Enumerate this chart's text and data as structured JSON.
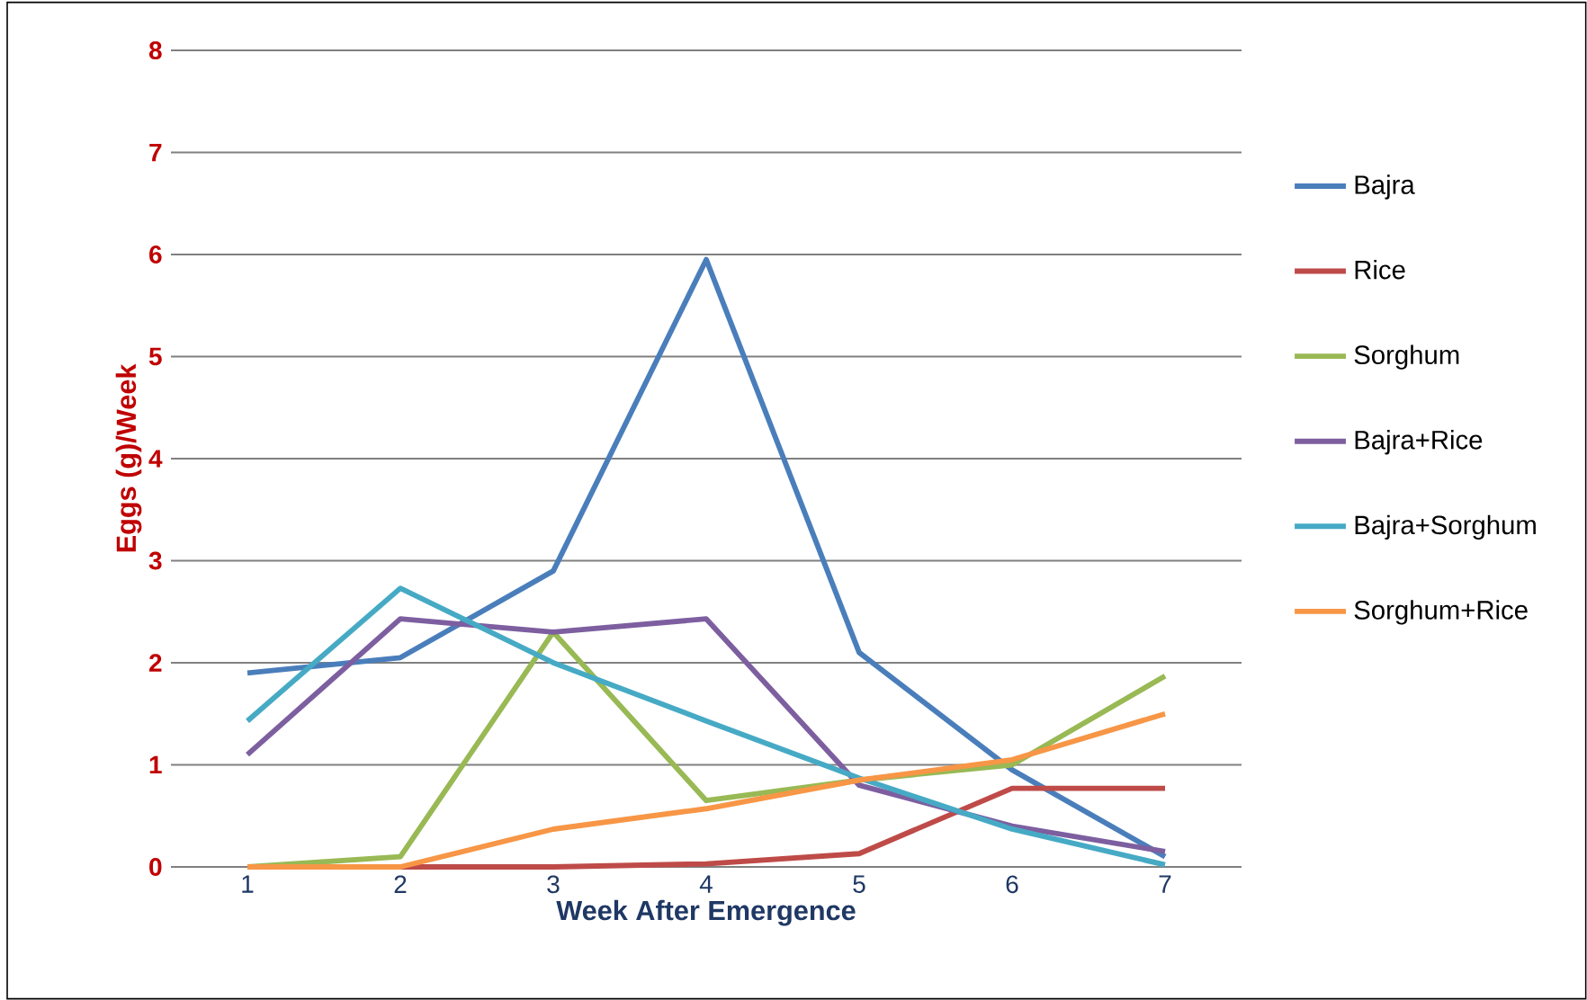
{
  "chart_data": {
    "type": "line",
    "xlabel": "Week After Emergence",
    "ylabel": "Eggs (g)/Week",
    "categories": [
      "1",
      "2",
      "3",
      "4",
      "5",
      "6",
      "7"
    ],
    "series": [
      {
        "name": "Bajra",
        "color": "#4a7ebb",
        "values": [
          1.9,
          2.05,
          2.9,
          5.95,
          2.1,
          0.95,
          0.1
        ]
      },
      {
        "name": "Rice",
        "color": "#be4b48",
        "values": [
          0,
          0,
          0,
          0.03,
          0.13,
          0.77,
          0.77
        ]
      },
      {
        "name": "Sorghum",
        "color": "#98b954",
        "values": [
          0,
          0.1,
          2.3,
          0.65,
          0.85,
          1.0,
          1.87
        ]
      },
      {
        "name": "Bajra+Rice",
        "color": "#7d5fa0",
        "values": [
          1.1,
          2.43,
          2.3,
          2.43,
          0.8,
          0.4,
          0.15
        ]
      },
      {
        "name": "Bajra+Sorghum",
        "color": "#46aac5",
        "values": [
          1.43,
          2.73,
          2.0,
          1.43,
          0.87,
          0.37,
          0.02
        ]
      },
      {
        "name": "Sorghum+Rice",
        "color": "#f79646",
        "values": [
          0,
          0,
          0.37,
          0.57,
          0.85,
          1.05,
          1.5
        ]
      }
    ],
    "ylim": [
      0,
      8
    ],
    "yticks": [
      0,
      1,
      2,
      3,
      4,
      5,
      6,
      7,
      8
    ],
    "grid": "y",
    "legend": "right",
    "marker": "none",
    "line_style": "solid"
  }
}
